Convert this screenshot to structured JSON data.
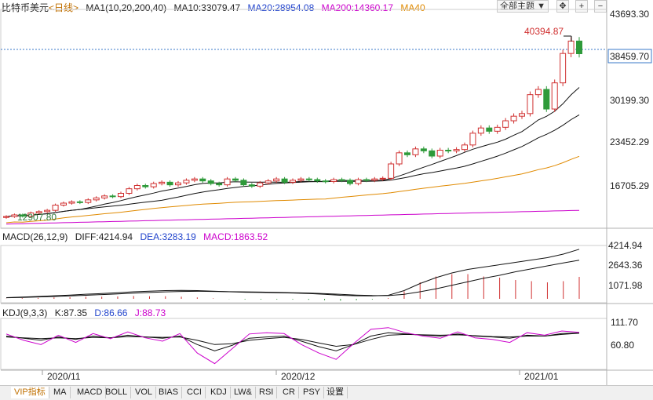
{
  "header": {
    "symbol": "比特币美元",
    "period": "<日线>",
    "ma_label": "MA1(10,20,200,40)",
    "ma10": "MA10:33079.47",
    "ma20": "MA20:28954.08",
    "ma200": "MA200:14360.17",
    "ma40": "MA40",
    "theme_button": "全部主题 ▼",
    "colors": {
      "ma10": "#111111",
      "ma20": "#2244cc",
      "ma200": "#cc00cc",
      "ma40": "#e08a00",
      "up": "#d03030",
      "down": "#2e9a3a"
    }
  },
  "macd_header": {
    "label": "MACD(26,12,9)",
    "diff": "DIFF:4214.94",
    "dea": "DEA:3283.19",
    "macd": "MACD:1863.52"
  },
  "kdj_header": {
    "label": "KDJ(9,3,3)",
    "k": "K:87.35",
    "d": "D:86.66",
    "j": "J:88.73"
  },
  "tabs": [
    "VIP指标",
    "MA",
    "MACD",
    "BOLL",
    "VOL",
    "BIAS",
    "CCI",
    "KDJ",
    "LW&",
    "RSI",
    "CR",
    "PSY",
    "设置"
  ],
  "chart_data": [
    {
      "type": "candlestick",
      "x_labels": [
        "2020/11",
        "2020/12",
        "2021/01"
      ],
      "y_ticks": [
        "43693.30",
        "38459.70",
        "30199.30",
        "23452.29",
        "16705.29"
      ],
      "ylim": [
        12000,
        45000
      ],
      "annotations": {
        "high": "40394.87",
        "low": "12907.80",
        "current": "38459.70"
      },
      "close_series": [
        13550,
        13800,
        13600,
        14100,
        14300,
        14500,
        15300,
        15600,
        15800,
        15700,
        16100,
        16400,
        16700,
        16600,
        17100,
        17800,
        18300,
        18100,
        18600,
        18800,
        18400,
        18700,
        19100,
        19300,
        19000,
        18600,
        18400,
        19300,
        19100,
        18400,
        18200,
        18700,
        19000,
        19300,
        18800,
        19100,
        19300,
        19200,
        19000,
        18900,
        19200,
        19100,
        18600,
        19200,
        19100,
        19300,
        19400,
        21600,
        23300,
        23000,
        23900,
        23600,
        22800,
        23700,
        23600,
        23800,
        24500,
        26300,
        27100,
        26600,
        27200,
        28200,
        28900,
        29300,
        32200,
        33000,
        30000,
        34000,
        38500,
        40400,
        38460
      ]
    },
    {
      "type": "line",
      "panel": "MACD",
      "series": [
        {
          "name": "DIFF",
          "values": [
            100,
            150,
            200,
            260,
            320,
            390,
            450,
            520,
            600,
            650,
            700,
            720,
            700,
            650,
            600,
            560,
            540,
            520,
            490,
            450,
            380,
            300,
            260,
            250,
            300,
            700,
            1300,
            1800,
            2200,
            2500,
            2700,
            2900,
            3100,
            3300,
            3500,
            3800,
            4214.94
          ]
        },
        {
          "name": "DEA",
          "values": [
            90,
            120,
            160,
            200,
            250,
            300,
            360,
            420,
            480,
            540,
            590,
            630,
            640,
            630,
            610,
            590,
            570,
            550,
            520,
            490,
            440,
            380,
            320,
            280,
            270,
            380,
            600,
            850,
            1150,
            1450,
            1750,
            2000,
            2300,
            2550,
            2800,
            3050,
            3283.19
          ]
        }
      ],
      "y_ticks": [
        "4214.94",
        "2643.36",
        "1071.98"
      ]
    },
    {
      "type": "line",
      "panel": "KDJ",
      "series": [
        {
          "name": "K",
          "values": [
            80,
            75,
            70,
            78,
            72,
            80,
            76,
            82,
            78,
            75,
            80,
            60,
            45,
            58,
            75,
            78,
            80,
            68,
            55,
            45,
            60,
            80,
            88,
            85,
            82,
            80,
            85,
            80,
            78,
            75,
            82,
            80,
            86,
            87.35
          ]
        },
        {
          "name": "D",
          "values": [
            78,
            76,
            74,
            76,
            74,
            77,
            76,
            79,
            78,
            77,
            78,
            70,
            60,
            62,
            70,
            74,
            77,
            72,
            64,
            56,
            60,
            72,
            82,
            84,
            83,
            82,
            83,
            81,
            79,
            78,
            80,
            80,
            84,
            86.66
          ]
        },
        {
          "name": "J",
          "values": [
            85,
            70,
            60,
            82,
            65,
            86,
            74,
            90,
            76,
            68,
            86,
            40,
            15,
            50,
            85,
            88,
            86,
            60,
            40,
            25,
            62,
            96,
            100,
            88,
            80,
            75,
            90,
            76,
            72,
            65,
            88,
            82,
            92,
            88.73
          ]
        }
      ],
      "y_ticks": [
        "111.70",
        "60.80"
      ]
    }
  ]
}
